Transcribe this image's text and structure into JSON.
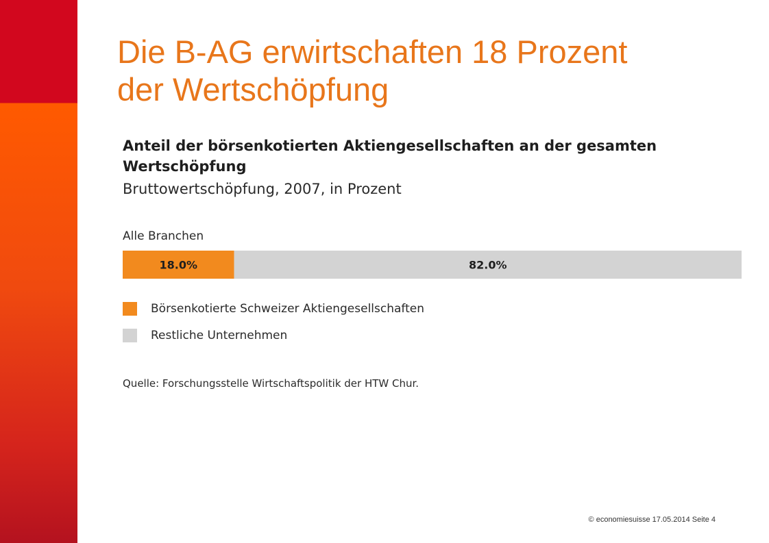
{
  "slide": {
    "title_lines": [
      "Die B-AG erwirtschaften 18 Prozent",
      "der Wertschöpfung"
    ],
    "footer": "© economiesuisse 17.05.2014  Seite 4"
  },
  "colors": {
    "title": "#e8761b",
    "band_top": "#d2071e",
    "band_bottom": "#ff5a00"
  },
  "chart_data": {
    "type": "bar",
    "orientation": "horizontal",
    "stacked": true,
    "title_lines": [
      "Anteil der börsenkotierten Aktiengesellschaften an der gesamten",
      "Wertschöpfung"
    ],
    "subtitle": "Bruttowertschöpfung, 2007, in Prozent",
    "categories": [
      "Alle Branchen"
    ],
    "series": [
      {
        "name": "Börsenkotierte Schweizer Aktiengesellschaften",
        "values": [
          18.0
        ],
        "label": "18.0%",
        "color": "#f28a1e"
      },
      {
        "name": "Restliche Unternehmen",
        "values": [
          82.0
        ],
        "label": "82.0%",
        "color": "#d3d3d3"
      }
    ],
    "xlim": [
      0,
      100
    ],
    "grid": false,
    "legend_position": "bottom-left",
    "source": "Quelle: Forschungsstelle Wirtschaftspolitik der HTW Chur."
  }
}
